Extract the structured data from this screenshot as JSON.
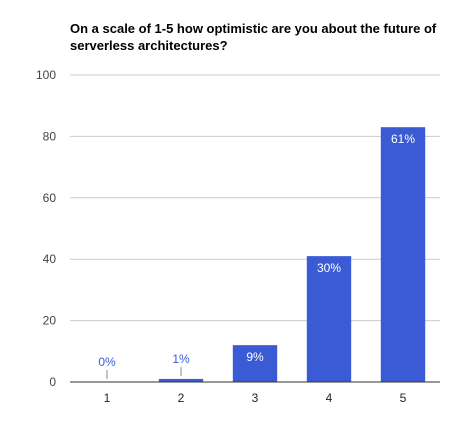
{
  "chart_data": {
    "type": "bar",
    "title": "On a scale of 1-5 how optimistic are you about the future of serverless architectures?",
    "xlabel": "",
    "ylabel": "",
    "categories": [
      "1",
      "2",
      "3",
      "4",
      "5"
    ],
    "values": [
      0,
      1,
      12,
      41,
      83
    ],
    "data_labels": [
      "0%",
      "1%",
      "9%",
      "30%",
      "61%"
    ],
    "ylim": [
      0,
      100
    ],
    "yticks": [
      0,
      20,
      40,
      60,
      80,
      100
    ],
    "grid": true,
    "legend": "none",
    "bar_color": "#3b5bd4"
  }
}
